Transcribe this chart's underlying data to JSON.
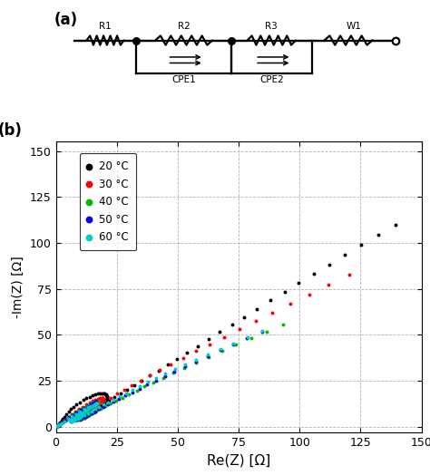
{
  "title_a": "(a)",
  "title_b": "(b)",
  "xlabel": "Re(Z) [Ω]",
  "ylabel": "-Im(Z) [Ω]",
  "xlim": [
    0,
    150
  ],
  "ylim": [
    -3,
    155
  ],
  "yticks": [
    0,
    25,
    50,
    75,
    100,
    125,
    150
  ],
  "xticks": [
    0,
    25,
    50,
    75,
    100,
    125,
    150
  ],
  "legend_labels": [
    "20 °C",
    "30 °C",
    "40 °C",
    "50 °C",
    "60 °C"
  ],
  "colors": [
    "#000000",
    "#ff0000",
    "#00bb00",
    "#0000ff",
    "#00cccc"
  ],
  "background": "#ffffff",
  "data_20C": {
    "re": [
      0.3,
      0.5,
      0.7,
      1.0,
      1.3,
      1.7,
      2.2,
      2.8,
      3.5,
      4.3,
      5.2,
      6.2,
      7.3,
      8.5,
      9.8,
      11.2,
      12.5,
      13.8,
      15.0,
      16.1,
      17.1,
      18.0,
      18.8,
      19.5,
      20.0,
      20.5,
      20.8,
      21.0,
      21.0,
      20.9,
      20.7,
      20.4,
      20.0,
      19.5,
      18.9,
      18.3,
      17.6,
      16.9,
      16.1,
      15.3,
      14.5,
      13.7,
      12.9,
      12.2,
      11.5,
      10.9,
      10.4,
      10.0,
      9.8,
      9.7,
      9.8,
      10.1,
      10.6,
      11.3,
      12.2,
      13.3,
      14.6,
      16.1,
      17.8,
      19.7,
      21.8,
      24.1,
      26.6,
      29.3,
      32.2,
      35.3,
      38.6,
      42.1,
      45.8,
      49.7,
      53.8,
      58.1,
      62.6,
      67.3,
      72.2,
      77.3,
      82.6,
      88.1,
      93.8,
      99.7,
      105.8,
      112.1,
      118.6,
      125.3,
      132.2,
      139.3
    ],
    "im": [
      0.2,
      0.4,
      0.7,
      1.1,
      1.6,
      2.3,
      3.2,
      4.2,
      5.4,
      6.7,
      8.1,
      9.5,
      10.9,
      12.2,
      13.4,
      14.5,
      15.5,
      16.3,
      17.0,
      17.5,
      17.9,
      18.1,
      18.2,
      18.1,
      17.9,
      17.6,
      17.2,
      16.7,
      16.1,
      15.5,
      14.8,
      14.1,
      13.3,
      12.5,
      11.7,
      10.9,
      10.1,
      9.3,
      8.5,
      7.8,
      7.1,
      6.5,
      5.9,
      5.4,
      4.9,
      4.6,
      4.3,
      4.1,
      4.0,
      4.1,
      4.3,
      4.6,
      5.1,
      5.7,
      6.5,
      7.4,
      8.5,
      9.7,
      11.1,
      12.6,
      14.3,
      16.1,
      18.1,
      20.3,
      22.6,
      25.1,
      27.8,
      30.7,
      33.7,
      36.9,
      40.3,
      43.9,
      47.6,
      51.5,
      55.6,
      59.8,
      64.2,
      68.7,
      73.4,
      78.2,
      83.2,
      88.3,
      93.5,
      98.9,
      104.4,
      110.0
    ]
  },
  "data_30C": {
    "re": [
      0.3,
      0.5,
      0.8,
      1.2,
      1.7,
      2.4,
      3.2,
      4.2,
      5.3,
      6.6,
      8.0,
      9.5,
      11.0,
      12.5,
      13.9,
      15.2,
      16.3,
      17.2,
      18.0,
      18.6,
      19.0,
      19.2,
      19.3,
      19.2,
      19.0,
      18.6,
      18.1,
      17.5,
      16.8,
      16.0,
      15.2,
      14.3,
      13.4,
      12.5,
      11.6,
      10.7,
      9.9,
      9.2,
      8.6,
      8.1,
      7.7,
      7.5,
      7.4,
      7.5,
      7.7,
      8.1,
      8.7,
      9.4,
      10.3,
      11.4,
      12.7,
      14.2,
      15.9,
      17.8,
      20.0,
      22.4,
      25.1,
      28.0,
      31.2,
      34.7,
      38.5,
      42.7,
      47.2,
      52.1,
      57.4,
      63.0,
      69.0,
      75.3,
      81.9,
      88.9,
      96.2,
      103.9,
      111.9,
      120.3
    ],
    "im": [
      0.2,
      0.4,
      0.6,
      1.0,
      1.5,
      2.2,
      3.1,
      4.2,
      5.4,
      6.8,
      8.2,
      9.6,
      10.9,
      12.1,
      13.1,
      14.0,
      14.7,
      15.3,
      15.7,
      15.9,
      15.9,
      15.8,
      15.5,
      15.2,
      14.7,
      14.2,
      13.6,
      13.0,
      12.3,
      11.5,
      10.8,
      10.1,
      9.3,
      8.6,
      7.9,
      7.3,
      6.7,
      6.2,
      5.7,
      5.3,
      5.0,
      4.7,
      4.6,
      4.6,
      4.7,
      5.0,
      5.4,
      5.9,
      6.6,
      7.4,
      8.4,
      9.6,
      10.9,
      12.4,
      14.1,
      15.9,
      17.9,
      20.1,
      22.5,
      25.1,
      27.9,
      30.9,
      34.1,
      37.5,
      41.1,
      44.9,
      48.9,
      53.1,
      57.5,
      62.1,
      66.9,
      71.9,
      77.1,
      82.5
    ]
  },
  "data_40C": {
    "re": [
      0.3,
      0.5,
      0.8,
      1.3,
      1.9,
      2.7,
      3.7,
      4.9,
      6.2,
      7.6,
      9.1,
      10.6,
      12.0,
      13.3,
      14.4,
      15.3,
      16.0,
      16.6,
      16.9,
      17.1,
      17.1,
      16.9,
      16.6,
      16.2,
      15.7,
      15.1,
      14.4,
      13.7,
      13.0,
      12.3,
      11.6,
      11.0,
      10.4,
      9.9,
      9.5,
      9.2,
      9.0,
      9.0,
      9.1,
      9.3,
      9.7,
      10.2,
      10.9,
      11.7,
      12.7,
      13.9,
      15.2,
      16.7,
      18.4,
      20.3,
      22.4,
      24.7,
      27.3,
      30.1,
      33.1,
      36.4,
      40.0,
      43.9,
      48.1,
      52.6,
      57.4,
      62.6,
      68.1,
      73.9,
      80.1,
      86.6,
      93.4
    ],
    "im": [
      0.2,
      0.4,
      0.7,
      1.1,
      1.7,
      2.5,
      3.5,
      4.7,
      6.0,
      7.3,
      8.6,
      9.8,
      10.9,
      11.8,
      12.5,
      13.1,
      13.5,
      13.7,
      13.8,
      13.7,
      13.5,
      13.2,
      12.8,
      12.3,
      11.7,
      11.1,
      10.4,
      9.7,
      9.0,
      8.3,
      7.7,
      7.0,
      6.5,
      5.9,
      5.5,
      5.1,
      4.7,
      4.5,
      4.4,
      4.4,
      4.5,
      4.7,
      5.0,
      5.5,
      6.1,
      6.8,
      7.7,
      8.7,
      9.8,
      11.1,
      12.5,
      14.1,
      15.8,
      17.7,
      19.7,
      21.9,
      24.2,
      26.7,
      29.3,
      32.1,
      35.0,
      38.1,
      41.3,
      44.7,
      48.2,
      51.9,
      55.7
    ]
  },
  "data_50C": {
    "re": [
      0.3,
      0.5,
      0.9,
      1.4,
      2.1,
      3.0,
      4.1,
      5.4,
      6.9,
      8.5,
      10.1,
      11.6,
      13.0,
      14.2,
      15.1,
      15.8,
      16.3,
      16.6,
      16.7,
      16.6,
      16.3,
      15.9,
      15.4,
      14.8,
      14.1,
      13.3,
      12.5,
      11.7,
      11.0,
      10.3,
      9.6,
      9.1,
      8.6,
      8.3,
      8.0,
      7.9,
      7.9,
      8.0,
      8.2,
      8.5,
      9.0,
      9.6,
      10.3,
      11.2,
      12.2,
      13.3,
      14.6,
      16.1,
      17.7,
      19.5,
      21.5,
      23.7,
      26.0,
      28.6,
      31.3,
      34.3,
      37.5,
      41.0,
      44.7,
      48.7,
      53.0,
      57.5,
      62.3,
      67.4,
      72.8,
      78.5,
      84.5
    ],
    "im": [
      0.2,
      0.4,
      0.7,
      1.2,
      1.8,
      2.7,
      3.8,
      5.1,
      6.5,
      7.9,
      9.2,
      10.4,
      11.4,
      12.2,
      12.8,
      13.2,
      13.5,
      13.6,
      13.5,
      13.3,
      12.9,
      12.5,
      12.0,
      11.4,
      10.7,
      10.0,
      9.3,
      8.6,
      7.9,
      7.2,
      6.6,
      6.0,
      5.5,
      5.0,
      4.6,
      4.3,
      4.0,
      3.9,
      3.8,
      3.9,
      4.0,
      4.3,
      4.7,
      5.2,
      5.8,
      6.6,
      7.4,
      8.4,
      9.5,
      10.8,
      12.1,
      13.6,
      15.2,
      16.9,
      18.8,
      20.8,
      22.9,
      25.2,
      27.6,
      30.1,
      32.8,
      35.6,
      38.5,
      41.6,
      44.8,
      48.1,
      51.6
    ]
  },
  "data_60C": {
    "re": [
      0.3,
      0.6,
      1.0,
      1.6,
      2.5,
      3.6,
      5.0,
      6.6,
      8.3,
      10.0,
      11.7,
      13.2,
      14.4,
      15.4,
      16.1,
      16.6,
      16.8,
      16.8,
      16.6,
      16.3,
      15.8,
      15.2,
      14.5,
      13.7,
      12.9,
      12.1,
      11.2,
      10.4,
      9.6,
      8.9,
      8.3,
      7.7,
      7.2,
      6.8,
      6.5,
      6.2,
      6.1,
      6.0,
      6.1,
      6.3,
      6.6,
      7.0,
      7.5,
      8.1,
      8.9,
      9.7,
      10.7,
      11.8,
      13.1,
      14.5,
      16.0,
      17.7,
      19.5,
      21.5,
      23.7,
      26.1,
      28.7,
      31.5,
      34.5,
      37.7,
      41.2,
      44.9,
      48.9,
      53.1,
      57.6,
      62.4,
      67.5,
      72.9,
      78.6,
      84.6
    ],
    "im": [
      0.2,
      0.4,
      0.8,
      1.3,
      2.0,
      3.0,
      4.2,
      5.6,
      7.0,
      8.3,
      9.5,
      10.5,
      11.3,
      11.9,
      12.4,
      12.6,
      12.7,
      12.7,
      12.5,
      12.2,
      11.8,
      11.3,
      10.7,
      10.0,
      9.3,
      8.6,
      7.9,
      7.2,
      6.6,
      6.0,
      5.4,
      4.9,
      4.4,
      4.0,
      3.6,
      3.3,
      3.1,
      2.9,
      2.9,
      2.9,
      3.0,
      3.2,
      3.5,
      3.9,
      4.4,
      5.0,
      5.7,
      6.5,
      7.4,
      8.4,
      9.5,
      10.7,
      12.0,
      13.4,
      14.9,
      16.6,
      18.3,
      20.2,
      22.2,
      24.3,
      26.5,
      28.8,
      31.3,
      33.9,
      36.6,
      39.4,
      42.4,
      45.5,
      48.7,
      52.1
    ]
  }
}
